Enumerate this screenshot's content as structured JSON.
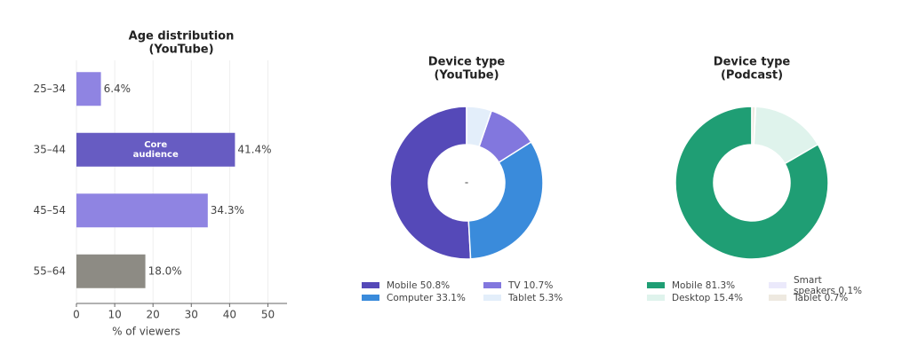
{
  "chart_data": [
    {
      "type": "barh",
      "title": "Age distribution",
      "subtitle": "(YouTube)",
      "categories": [
        "25–34",
        "35–44",
        "45–54",
        "55–64"
      ],
      "values": [
        6.4,
        41.4,
        34.3,
        18.0
      ],
      "value_labels": [
        "6.4%",
        "41.4%",
        "34.3%",
        "18.0%"
      ],
      "colors": [
        "#8f84e2",
        "#675cc2",
        "#8f84e2",
        "#8d8b84"
      ],
      "annotation": [
        "Core",
        "audience"
      ],
      "xlabel": "% of viewers",
      "xlim": [
        0,
        55
      ],
      "xticks": [
        0,
        10,
        20,
        30,
        40,
        50
      ],
      "grid": true
    },
    {
      "type": "donut",
      "title": "Device type",
      "subtitle": "(YouTube)",
      "categories": [
        "Mobile",
        "Computer",
        "TV",
        "Tablet"
      ],
      "values": [
        50.8,
        33.1,
        10.7,
        5.3
      ],
      "legend_labels": [
        [
          "Mobile 50.8%"
        ],
        [
          "Computer 33.1%"
        ],
        [
          "TV 10.7%"
        ],
        [
          "Tablet 5.3%"
        ]
      ],
      "colors": [
        "#5549b8",
        "#3a8bdb",
        "#8277de",
        "#e3eefa"
      ],
      "center_label": "-"
    },
    {
      "type": "donut",
      "title": "Device type",
      "subtitle": "(Podcast)",
      "categories": [
        "Mobile",
        "Desktop",
        "Smart speakers",
        "Tablet"
      ],
      "values": [
        81.3,
        15.4,
        0.1,
        0.7
      ],
      "legend_labels": [
        [
          "Mobile 81.3%"
        ],
        [
          "Desktop 15.4%"
        ],
        [
          "Smart",
          "speakers 0.1%"
        ],
        [
          "Tablet 0.7%"
        ]
      ],
      "colors": [
        "#1f9e74",
        "#dff3ec",
        "#ebe9fb",
        "#eee9e0"
      ]
    }
  ]
}
